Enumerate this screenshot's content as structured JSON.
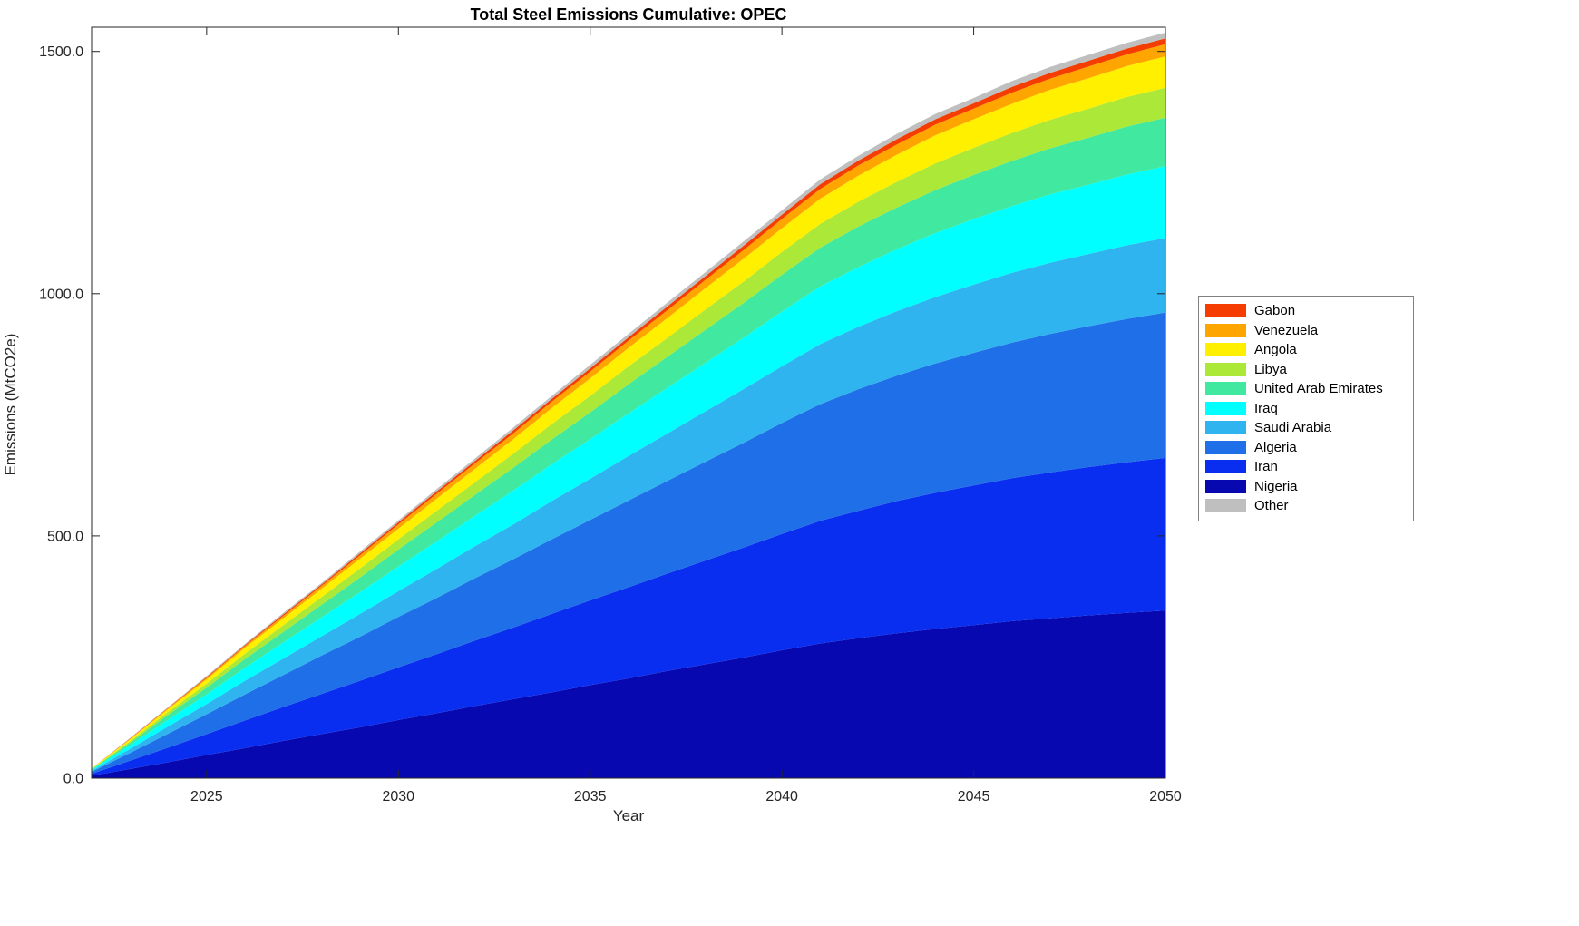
{
  "chart_data": {
    "type": "area",
    "stacked": true,
    "title": "Total Steel Emissions Cumulative: OPEC",
    "xlabel": "Year",
    "ylabel": "Emissions (MtCO2e)",
    "x_range": [
      2022,
      2050
    ],
    "y_max": 1550,
    "grid": false,
    "legend_position": "right-outside",
    "x_ticks": [
      2025,
      2030,
      2035,
      2040,
      2045,
      2050
    ],
    "x_tick_labels": [
      "2025",
      "2030",
      "2035",
      "2040",
      "2045",
      "2050"
    ],
    "y_ticks": [
      0,
      500,
      1000,
      1500
    ],
    "y_tick_labels": [
      "0.0",
      "500.0",
      "1000.0",
      "1500.0"
    ],
    "years": [
      2022,
      2023,
      2024,
      2025,
      2026,
      2027,
      2028,
      2029,
      2030,
      2031,
      2032,
      2033,
      2034,
      2035,
      2036,
      2037,
      2038,
      2039,
      2040,
      2041,
      2042,
      2043,
      2044,
      2045,
      2046,
      2047,
      2048,
      2049,
      2050
    ],
    "series": [
      {
        "name": "Nigeria",
        "color": "#0808B0",
        "values": [
          5,
          19,
          33,
          48,
          62,
          77,
          91,
          105,
          120,
          134,
          149,
          163,
          177,
          192,
          206,
          221,
          235,
          249,
          264,
          278,
          289,
          299,
          308,
          316,
          324,
          330,
          336,
          341,
          346
        ]
      },
      {
        "name": "Iran",
        "color": "#0A2EF0",
        "values": [
          4,
          17,
          30,
          43,
          57,
          70,
          83,
          96,
          109,
          122,
          135,
          148,
          162,
          175,
          188,
          201,
          214,
          227,
          240,
          253,
          263,
          273,
          281,
          288,
          295,
          301,
          306,
          311,
          315
        ]
      },
      {
        "name": "Algeria",
        "color": "#1F6FE8",
        "values": [
          4,
          16,
          29,
          41,
          54,
          66,
          79,
          91,
          104,
          116,
          129,
          141,
          154,
          166,
          179,
          191,
          204,
          216,
          229,
          241,
          251,
          259,
          267,
          274,
          280,
          286,
          291,
          296,
          300
        ]
      },
      {
        "name": "Saudi Arabia",
        "color": "#2FB4F0",
        "values": [
          2,
          8,
          15,
          21,
          28,
          34,
          40,
          47,
          53,
          60,
          66,
          72,
          79,
          85,
          92,
          98,
          104,
          111,
          117,
          124,
          129,
          133,
          137,
          141,
          144,
          147,
          149,
          152,
          154
        ]
      },
      {
        "name": "Iraq",
        "color": "#00FFFF",
        "values": [
          2,
          8,
          14,
          20,
          27,
          33,
          39,
          45,
          51,
          57,
          63,
          70,
          76,
          82,
          88,
          94,
          100,
          106,
          113,
          119,
          123,
          128,
          132,
          135,
          138,
          141,
          143,
          146,
          148
        ]
      },
      {
        "name": "United Arab Emirates",
        "color": "#40E8A0",
        "values": [
          1,
          5,
          10,
          14,
          18,
          22,
          26,
          30,
          35,
          39,
          43,
          47,
          51,
          55,
          60,
          64,
          68,
          72,
          76,
          80,
          84,
          86,
          89,
          91,
          93,
          95,
          97,
          99,
          100
        ]
      },
      {
        "name": "Libya",
        "color": "#ABE838",
        "values": [
          1,
          3,
          6,
          8,
          11,
          14,
          16,
          19,
          21,
          24,
          26,
          29,
          32,
          34,
          37,
          39,
          42,
          44,
          47,
          49,
          51,
          53,
          55,
          56,
          58,
          59,
          60,
          61,
          62
        ]
      },
      {
        "name": "Angola",
        "color": "#FFF000",
        "values": [
          1,
          4,
          6,
          9,
          12,
          14,
          17,
          20,
          22,
          25,
          28,
          30,
          33,
          36,
          38,
          41,
          44,
          47,
          49,
          52,
          54,
          56,
          58,
          59,
          60,
          62,
          63,
          64,
          65
        ]
      },
      {
        "name": "Venezuela",
        "color": "#FFA500",
        "values": [
          0,
          1,
          2,
          3,
          4,
          5,
          6,
          7,
          9,
          10,
          11,
          12,
          13,
          14,
          15,
          16,
          17,
          18,
          19,
          20,
          21,
          21,
          22,
          22,
          23,
          23,
          24,
          24,
          25
        ]
      },
      {
        "name": "Gabon",
        "color": "#F53D02",
        "values": [
          0,
          1,
          1,
          2,
          2,
          3,
          3,
          4,
          4,
          5,
          5,
          6,
          6,
          7,
          7,
          8,
          8,
          9,
          9,
          10,
          10,
          11,
          11,
          11,
          12,
          12,
          12,
          12,
          12
        ]
      },
      {
        "name": "Other",
        "color": "#BFBFBF",
        "values": [
          0,
          1,
          1,
          2,
          2,
          3,
          3,
          4,
          4,
          5,
          5,
          6,
          6,
          7,
          7,
          8,
          8,
          9,
          9,
          10,
          10,
          11,
          11,
          11,
          12,
          12,
          12,
          12,
          12
        ]
      }
    ],
    "legend_order": [
      "Gabon",
      "Venezuela",
      "Angola",
      "Libya",
      "United Arab Emirates",
      "Iraq",
      "Saudi Arabia",
      "Algeria",
      "Iran",
      "Nigeria",
      "Other"
    ]
  },
  "style": {
    "axis_color": "#262626",
    "tick_label_color": "#262626",
    "background": "#ffffff"
  }
}
